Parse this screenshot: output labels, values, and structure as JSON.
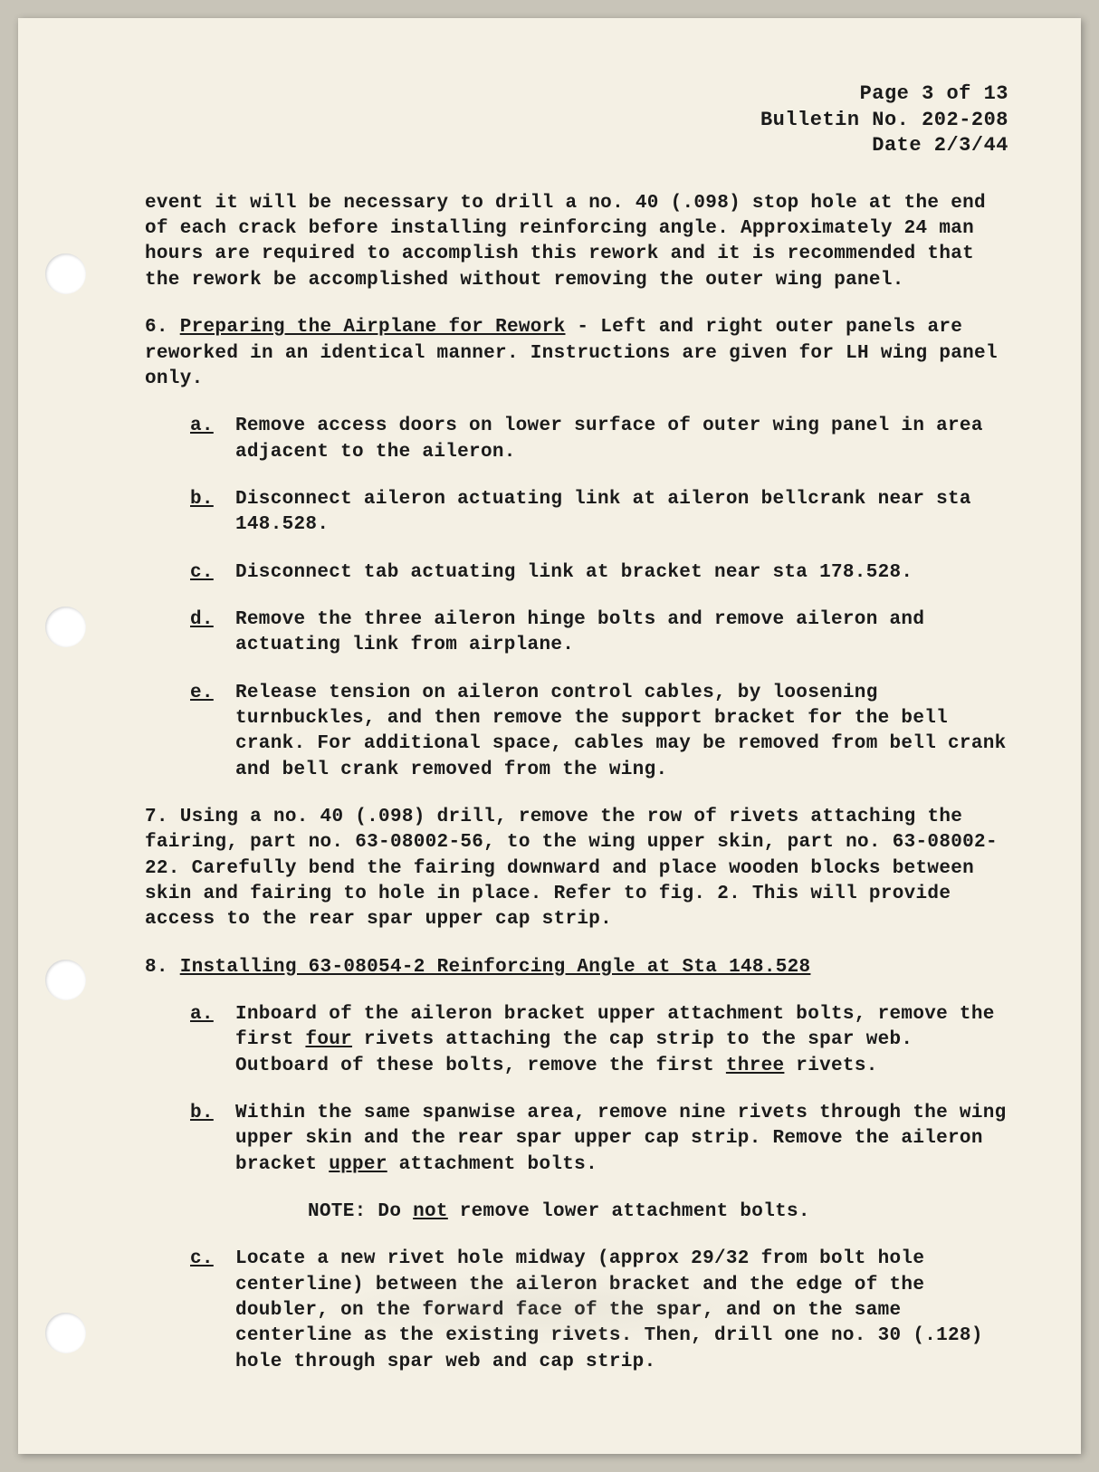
{
  "header": {
    "page": "Page 3 of 13",
    "bulletin": "Bulletin No. 202-208",
    "date": "Date 2/3/44"
  },
  "intro_para": "event it will be necessary to drill a no. 40 (.098) stop hole at the end of each crack before installing reinforcing angle.  Approximately 24 man hours are required to accomplish this rework and it is recommended that the rework be accomplished without removing the outer wing panel.",
  "section6": {
    "number": "6.",
    "title": "Preparing the Airplane for Rework",
    "intro": " - Left and right outer panels are reworked in an identical manner.  Instructions are given for LH wing panel only.",
    "items": [
      {
        "label": "a.",
        "text": "Remove access doors on lower surface of outer wing panel in area adjacent to the aileron."
      },
      {
        "label": "b.",
        "text": "Disconnect aileron actuating link at aileron bellcrank near sta 148.528."
      },
      {
        "label": "c.",
        "text": "Disconnect tab actuating link at bracket near sta 178.528."
      },
      {
        "label": "d.",
        "text": "Remove the three aileron hinge bolts and remove aileron and actuating link from airplane."
      },
      {
        "label": "e.",
        "text": "Release tension on aileron control cables, by loosening turnbuckles, and then remove the support bracket for the bell crank.  For additional space, cables may be removed from bell crank and bell crank removed from the wing."
      }
    ]
  },
  "section7": {
    "number": "7.",
    "text": "Using a no. 40 (.098) drill, remove the row of rivets attaching the fairing, part no. 63-08002-56, to the wing upper skin, part no. 63-08002-22.  Carefully bend the fairing downward and place wooden blocks between skin and fairing to hole in place.  Refer to fig. 2.  This will provide access to the rear spar upper cap strip."
  },
  "section8": {
    "number": "8.",
    "title": "Installing 63-08054-2 Reinforcing Angle at Sta 148.528",
    "items": [
      {
        "label": "a.",
        "pre": "Inboard of the aileron bracket upper attachment bolts, remove the first ",
        "u1": "four",
        "mid": " rivets attaching the cap strip to the spar web.  Outboard of these bolts, remove the first ",
        "u2": "three",
        "post": " rivets."
      },
      {
        "label": "b.",
        "pre": "Within the same spanwise area, remove nine rivets through the wing upper skin and the rear spar upper cap strip.  Remove the aileron bracket ",
        "u1": "upper",
        "post": " attachment bolts."
      }
    ],
    "note_pre": "NOTE:  Do ",
    "note_u": "not",
    "note_post": " remove lower attachment bolts.",
    "item_c": {
      "label": "c.",
      "text": "Locate a new rivet hole midway (approx 29/32 from bolt hole centerline) between the aileron bracket and the edge of the doubler, on the forward face of the spar, and on the same centerline as the existing rivets.  Then, drill one no. 30 (.128) hole through spar web and cap strip."
    }
  }
}
